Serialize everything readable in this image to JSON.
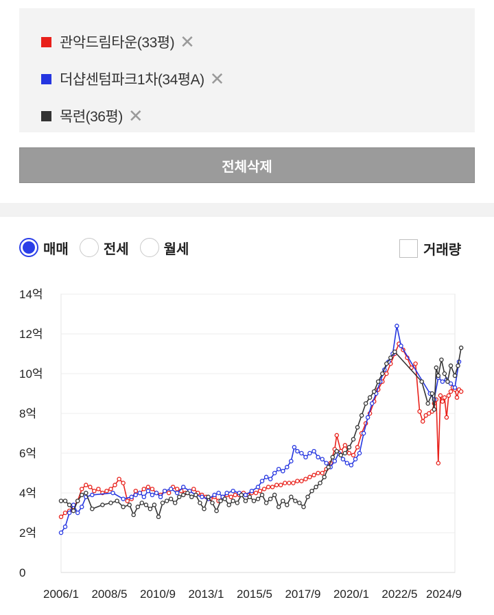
{
  "legend": {
    "items": [
      {
        "label": "관악드림타운(33평)",
        "color": "#e8201a"
      },
      {
        "label": "더샵센텀파크1차(34평A)",
        "color": "#2435e0"
      },
      {
        "label": "목련(36평)",
        "color": "#333333"
      }
    ],
    "remove_icon": "close-icon"
  },
  "delete_all_label": "전체삭제",
  "trade_types": {
    "options": [
      {
        "label": "매매",
        "checked": true
      },
      {
        "label": "전세",
        "checked": false
      },
      {
        "label": "월세",
        "checked": false
      }
    ]
  },
  "volume_toggle": {
    "label": "거래량",
    "checked": false
  },
  "chart_data": {
    "type": "line",
    "ylim": [
      0,
      14
    ],
    "y_ticks": [
      {
        "value": 0,
        "label": "0"
      },
      {
        "value": 2,
        "label": "2억"
      },
      {
        "value": 4,
        "label": "4억"
      },
      {
        "value": 6,
        "label": "6억"
      },
      {
        "value": 8,
        "label": "8억"
      },
      {
        "value": 10,
        "label": "10억"
      },
      {
        "value": 12,
        "label": "12억"
      },
      {
        "value": 14,
        "label": "14억"
      }
    ],
    "xlim": [
      2006.0,
      2025.0
    ],
    "x_ticks": [
      {
        "value": 2006.0,
        "label": "2006/1"
      },
      {
        "value": 2008.333,
        "label": "2008/5"
      },
      {
        "value": 2010.667,
        "label": "2010/9"
      },
      {
        "value": 2013.0,
        "label": "2013/1"
      },
      {
        "value": 2015.333,
        "label": "2015/5"
      },
      {
        "value": 2017.667,
        "label": "2017/9"
      },
      {
        "value": 2020.0,
        "label": "2020/1"
      },
      {
        "value": 2022.333,
        "label": "2022/5"
      },
      {
        "value": 2024.667,
        "label": "2024/9"
      }
    ],
    "grid": true,
    "series": [
      {
        "color": "#e8201a",
        "points": [
          [
            2006.0,
            2.8
          ],
          [
            2006.2,
            3.0
          ],
          [
            2006.4,
            3.1
          ],
          [
            2006.6,
            3.3
          ],
          [
            2006.8,
            3.6
          ],
          [
            2007.0,
            4.2
          ],
          [
            2007.2,
            4.4
          ],
          [
            2007.4,
            4.3
          ],
          [
            2007.6,
            4.1
          ],
          [
            2007.8,
            4.2
          ],
          [
            2008.0,
            4.0
          ],
          [
            2008.2,
            4.1
          ],
          [
            2008.4,
            4.2
          ],
          [
            2008.6,
            4.4
          ],
          [
            2008.8,
            4.7
          ],
          [
            2009.0,
            4.5
          ],
          [
            2009.2,
            3.6
          ],
          [
            2009.4,
            3.7
          ],
          [
            2009.6,
            4.1
          ],
          [
            2009.8,
            4.0
          ],
          [
            2010.0,
            4.2
          ],
          [
            2010.2,
            4.3
          ],
          [
            2010.4,
            4.2
          ],
          [
            2010.6,
            4.0
          ],
          [
            2010.8,
            3.9
          ],
          [
            2011.0,
            4.1
          ],
          [
            2011.2,
            4.0
          ],
          [
            2011.4,
            4.3
          ],
          [
            2011.6,
            4.2
          ],
          [
            2011.8,
            4.1
          ],
          [
            2012.0,
            4.0
          ],
          [
            2012.2,
            4.1
          ],
          [
            2012.4,
            4.2
          ],
          [
            2012.6,
            4.0
          ],
          [
            2012.8,
            3.9
          ],
          [
            2013.0,
            3.8
          ],
          [
            2013.2,
            3.7
          ],
          [
            2013.4,
            3.8
          ],
          [
            2013.6,
            3.6
          ],
          [
            2013.8,
            3.8
          ],
          [
            2014.0,
            3.9
          ],
          [
            2014.2,
            3.8
          ],
          [
            2014.4,
            3.9
          ],
          [
            2014.6,
            3.9
          ],
          [
            2014.8,
            4.0
          ],
          [
            2015.0,
            3.9
          ],
          [
            2015.2,
            4.0
          ],
          [
            2015.4,
            4.0
          ],
          [
            2015.6,
            4.1
          ],
          [
            2015.8,
            4.2
          ],
          [
            2016.0,
            4.3
          ],
          [
            2016.2,
            4.3
          ],
          [
            2016.4,
            4.4
          ],
          [
            2016.6,
            4.4
          ],
          [
            2016.8,
            4.5
          ],
          [
            2017.0,
            4.5
          ],
          [
            2017.2,
            4.5
          ],
          [
            2017.4,
            4.6
          ],
          [
            2017.6,
            4.6
          ],
          [
            2017.8,
            4.7
          ],
          [
            2018.0,
            4.8
          ],
          [
            2018.2,
            4.9
          ],
          [
            2018.4,
            5.0
          ],
          [
            2018.6,
            5.0
          ],
          [
            2018.8,
            5.2
          ],
          [
            2019.0,
            5.5
          ],
          [
            2019.2,
            6.2
          ],
          [
            2019.3,
            6.9
          ],
          [
            2019.5,
            6.1
          ],
          [
            2019.7,
            6.4
          ],
          [
            2019.9,
            6.0
          ],
          [
            2020.1,
            5.9
          ],
          [
            2020.3,
            6.3
          ],
          [
            2020.5,
            7.0
          ],
          [
            2020.7,
            7.5
          ],
          [
            2020.9,
            8.0
          ],
          [
            2021.1,
            8.6
          ],
          [
            2021.3,
            9.2
          ],
          [
            2021.5,
            9.6
          ],
          [
            2021.7,
            10.0
          ],
          [
            2021.9,
            10.5
          ],
          [
            2022.1,
            11.0
          ],
          [
            2022.3,
            11.5
          ],
          [
            2022.5,
            11.2
          ],
          [
            2022.7,
            10.8
          ],
          [
            2022.9,
            10.3
          ],
          [
            2023.1,
            10.5
          ],
          [
            2023.3,
            8.1
          ],
          [
            2023.45,
            7.6
          ],
          [
            2023.6,
            7.9
          ],
          [
            2023.75,
            8.0
          ],
          [
            2023.9,
            8.1
          ],
          [
            2024.0,
            8.5
          ],
          [
            2024.1,
            8.7
          ],
          [
            2024.2,
            5.5
          ],
          [
            2024.3,
            8.9
          ],
          [
            2024.4,
            8.6
          ],
          [
            2024.5,
            8.8
          ],
          [
            2024.6,
            7.8
          ],
          [
            2024.7,
            8.9
          ],
          [
            2024.8,
            9.1
          ],
          [
            2024.9,
            9.3
          ],
          [
            2025.0,
            9.2
          ],
          [
            2025.1,
            8.8
          ],
          [
            2025.2,
            9.2
          ],
          [
            2025.3,
            9.1
          ]
        ]
      },
      {
        "color": "#2435e0",
        "points": [
          [
            2006.0,
            2.0
          ],
          [
            2006.2,
            2.3
          ],
          [
            2006.4,
            3.0
          ],
          [
            2006.6,
            3.4
          ],
          [
            2006.8,
            3.0
          ],
          [
            2007.0,
            3.3
          ],
          [
            2007.2,
            3.8
          ],
          [
            2007.5,
            3.9
          ],
          [
            2008.5,
            4.0
          ],
          [
            2009.0,
            3.7
          ],
          [
            2009.4,
            3.8
          ],
          [
            2009.6,
            3.9
          ],
          [
            2009.8,
            4.0
          ],
          [
            2010.0,
            3.8
          ],
          [
            2010.2,
            4.1
          ],
          [
            2010.4,
            3.9
          ],
          [
            2010.6,
            4.0
          ],
          [
            2010.8,
            3.8
          ],
          [
            2011.0,
            4.1
          ],
          [
            2011.3,
            4.2
          ],
          [
            2011.6,
            4.0
          ],
          [
            2011.9,
            4.3
          ],
          [
            2012.2,
            4.1
          ],
          [
            2012.5,
            3.9
          ],
          [
            2012.8,
            3.8
          ],
          [
            2013.1,
            3.7
          ],
          [
            2013.4,
            3.9
          ],
          [
            2013.6,
            4.0
          ],
          [
            2013.8,
            3.8
          ],
          [
            2014.0,
            4.0
          ],
          [
            2014.3,
            4.1
          ],
          [
            2014.6,
            4.0
          ],
          [
            2014.9,
            3.9
          ],
          [
            2015.2,
            4.1
          ],
          [
            2015.5,
            4.3
          ],
          [
            2015.7,
            4.6
          ],
          [
            2015.9,
            4.8
          ],
          [
            2016.1,
            4.7
          ],
          [
            2016.3,
            5.0
          ],
          [
            2016.5,
            5.2
          ],
          [
            2016.7,
            5.1
          ],
          [
            2016.9,
            5.3
          ],
          [
            2017.1,
            5.6
          ],
          [
            2017.25,
            6.3
          ],
          [
            2017.4,
            6.1
          ],
          [
            2017.6,
            6.0
          ],
          [
            2017.8,
            5.8
          ],
          [
            2018.0,
            6.0
          ],
          [
            2018.2,
            6.1
          ],
          [
            2018.4,
            5.8
          ],
          [
            2018.6,
            5.7
          ],
          [
            2018.8,
            5.5
          ],
          [
            2019.0,
            5.3
          ],
          [
            2019.2,
            5.6
          ],
          [
            2019.4,
            6.0
          ],
          [
            2019.6,
            5.7
          ],
          [
            2019.8,
            5.5
          ],
          [
            2020.0,
            5.4
          ],
          [
            2020.2,
            5.7
          ],
          [
            2020.4,
            6.0
          ],
          [
            2020.6,
            7.0
          ],
          [
            2020.8,
            7.8
          ],
          [
            2021.0,
            8.5
          ],
          [
            2021.2,
            9.0
          ],
          [
            2021.4,
            9.6
          ],
          [
            2021.6,
            10.2
          ],
          [
            2021.8,
            10.6
          ],
          [
            2022.0,
            11.0
          ],
          [
            2022.2,
            12.4
          ],
          [
            2022.4,
            11.4
          ],
          [
            2023.8,
            9.0
          ],
          [
            2024.0,
            8.7
          ],
          [
            2024.2,
            9.8
          ],
          [
            2024.4,
            9.6
          ],
          [
            2024.6,
            9.7
          ],
          [
            2024.8,
            9.5
          ],
          [
            2025.0,
            9.3
          ],
          [
            2025.2,
            10.6
          ]
        ]
      },
      {
        "color": "#333333",
        "points": [
          [
            2006.0,
            3.6
          ],
          [
            2006.2,
            3.6
          ],
          [
            2006.4,
            3.4
          ],
          [
            2006.6,
            3.1
          ],
          [
            2006.8,
            3.6
          ],
          [
            2007.0,
            3.9
          ],
          [
            2007.2,
            4.0
          ],
          [
            2007.5,
            3.2
          ],
          [
            2008.0,
            3.4
          ],
          [
            2008.4,
            3.5
          ],
          [
            2008.7,
            3.6
          ],
          [
            2009.0,
            3.3
          ],
          [
            2009.3,
            3.4
          ],
          [
            2009.5,
            2.9
          ],
          [
            2009.7,
            3.3
          ],
          [
            2009.9,
            3.5
          ],
          [
            2010.1,
            3.4
          ],
          [
            2010.3,
            3.2
          ],
          [
            2010.5,
            3.4
          ],
          [
            2010.7,
            2.8
          ],
          [
            2010.9,
            3.5
          ],
          [
            2011.1,
            3.6
          ],
          [
            2011.3,
            3.7
          ],
          [
            2011.5,
            3.5
          ],
          [
            2011.7,
            3.8
          ],
          [
            2011.9,
            3.9
          ],
          [
            2012.1,
            4.0
          ],
          [
            2012.3,
            3.8
          ],
          [
            2012.5,
            3.9
          ],
          [
            2012.7,
            3.5
          ],
          [
            2012.9,
            3.2
          ],
          [
            2013.1,
            3.8
          ],
          [
            2013.3,
            3.5
          ],
          [
            2013.5,
            3.1
          ],
          [
            2013.7,
            3.6
          ],
          [
            2013.9,
            3.7
          ],
          [
            2014.1,
            3.4
          ],
          [
            2014.3,
            3.6
          ],
          [
            2014.5,
            3.5
          ],
          [
            2014.7,
            3.9
          ],
          [
            2014.9,
            3.6
          ],
          [
            2015.1,
            3.8
          ],
          [
            2015.3,
            3.6
          ],
          [
            2015.5,
            3.7
          ],
          [
            2015.7,
            3.9
          ],
          [
            2015.9,
            3.5
          ],
          [
            2016.1,
            3.7
          ],
          [
            2016.3,
            3.9
          ],
          [
            2016.5,
            3.3
          ],
          [
            2016.7,
            3.6
          ],
          [
            2016.9,
            3.4
          ],
          [
            2017.1,
            3.8
          ],
          [
            2017.3,
            3.6
          ],
          [
            2017.5,
            3.5
          ],
          [
            2017.7,
            3.3
          ],
          [
            2017.9,
            3.8
          ],
          [
            2018.1,
            4.1
          ],
          [
            2018.3,
            4.3
          ],
          [
            2018.5,
            4.5
          ],
          [
            2018.7,
            4.8
          ],
          [
            2018.9,
            5.3
          ],
          [
            2019.1,
            5.8
          ],
          [
            2019.3,
            6.1
          ],
          [
            2019.5,
            5.9
          ],
          [
            2019.7,
            6.0
          ],
          [
            2019.9,
            6.3
          ],
          [
            2020.1,
            6.7
          ],
          [
            2020.3,
            7.3
          ],
          [
            2020.5,
            7.9
          ],
          [
            2020.7,
            8.5
          ],
          [
            2020.9,
            8.8
          ],
          [
            2021.1,
            9.1
          ],
          [
            2021.3,
            9.6
          ],
          [
            2021.5,
            10.0
          ],
          [
            2021.7,
            10.5
          ],
          [
            2021.9,
            10.8
          ],
          [
            2022.1,
            11.1
          ],
          [
            2023.4,
            9.6
          ],
          [
            2023.7,
            8.5
          ],
          [
            2023.9,
            9.0
          ],
          [
            2024.0,
            8.2
          ],
          [
            2024.1,
            10.3
          ],
          [
            2024.2,
            9.9
          ],
          [
            2024.35,
            10.7
          ],
          [
            2024.5,
            10.0
          ],
          [
            2024.65,
            9.6
          ],
          [
            2024.8,
            10.4
          ],
          [
            2025.0,
            9.9
          ],
          [
            2025.15,
            10.4
          ],
          [
            2025.3,
            11.3
          ]
        ]
      }
    ]
  }
}
